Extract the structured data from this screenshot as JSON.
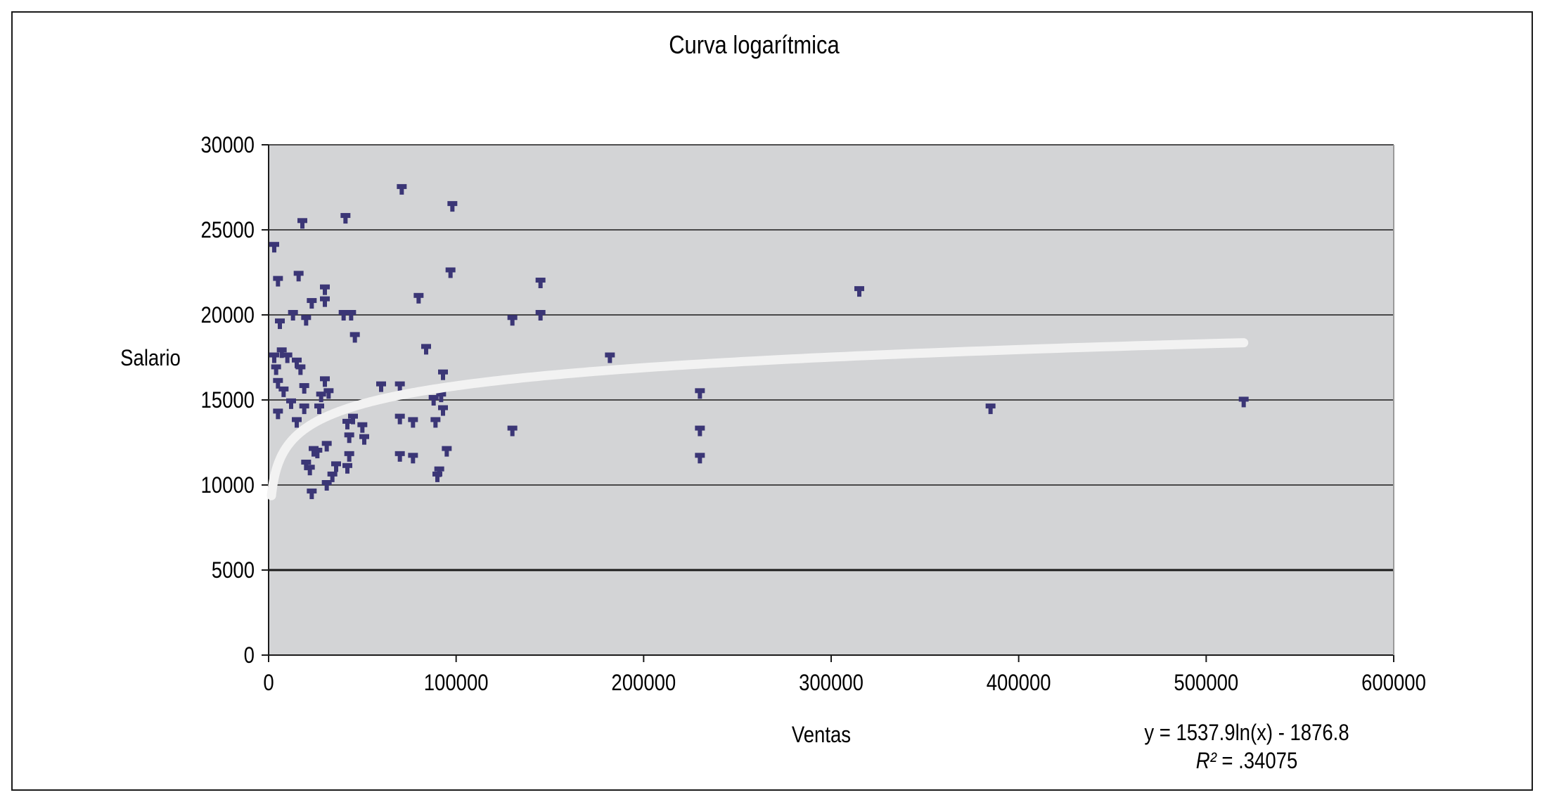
{
  "colors": {
    "plot_bg": "#d3d4d6",
    "marker": "#3b3676",
    "trendline": "#f2f2f2",
    "gridline": "#1a1a1a",
    "frame": "#1a1a1a"
  },
  "chart_data": {
    "type": "scatter",
    "title": "Curva logarítmica",
    "xlabel": "Ventas",
    "ylabel": "Salario",
    "xlim": [
      0,
      600000
    ],
    "ylim": [
      0,
      30000
    ],
    "xticks": [
      0,
      100000,
      200000,
      300000,
      400000,
      500000,
      600000
    ],
    "xtick_labels": [
      "0",
      "100000",
      "200000",
      "300000",
      "400000",
      "500000",
      "600000"
    ],
    "yticks": [
      0,
      5000,
      10000,
      15000,
      20000,
      25000,
      30000
    ],
    "ytick_labels": [
      "0",
      "5000",
      "10000",
      "15000",
      "20000",
      "25000",
      "30000"
    ],
    "grid": "horizontal",
    "trendline": {
      "type": "logarithmic",
      "a": 1537.9,
      "b": -1876.8,
      "equation": "y = 1537.9ln(x) - 1876.8",
      "r2_prefix": "R²",
      "r2_value": " = .34075"
    },
    "points": [
      {
        "x": 3000,
        "y": 24000
      },
      {
        "x": 5000,
        "y": 22000
      },
      {
        "x": 6000,
        "y": 19500
      },
      {
        "x": 3000,
        "y": 17500
      },
      {
        "x": 4000,
        "y": 16800
      },
      {
        "x": 5000,
        "y": 16000
      },
      {
        "x": 5000,
        "y": 14200
      },
      {
        "x": 8000,
        "y": 15500
      },
      {
        "x": 7000,
        "y": 17800
      },
      {
        "x": 10000,
        "y": 17500
      },
      {
        "x": 12000,
        "y": 14800
      },
      {
        "x": 13000,
        "y": 20000
      },
      {
        "x": 15000,
        "y": 17200
      },
      {
        "x": 16000,
        "y": 22300
      },
      {
        "x": 17000,
        "y": 16800
      },
      {
        "x": 18000,
        "y": 25400
      },
      {
        "x": 19000,
        "y": 15700
      },
      {
        "x": 19000,
        "y": 14500
      },
      {
        "x": 15000,
        "y": 13700
      },
      {
        "x": 20000,
        "y": 19700
      },
      {
        "x": 20000,
        "y": 11200
      },
      {
        "x": 22000,
        "y": 10900
      },
      {
        "x": 23000,
        "y": 20700
      },
      {
        "x": 23000,
        "y": 9500
      },
      {
        "x": 24000,
        "y": 12000
      },
      {
        "x": 26000,
        "y": 11900
      },
      {
        "x": 27000,
        "y": 14500
      },
      {
        "x": 28000,
        "y": 15200
      },
      {
        "x": 30000,
        "y": 16100
      },
      {
        "x": 30000,
        "y": 21500
      },
      {
        "x": 30000,
        "y": 20800
      },
      {
        "x": 31000,
        "y": 12300
      },
      {
        "x": 32000,
        "y": 15400
      },
      {
        "x": 31000,
        "y": 10000
      },
      {
        "x": 34000,
        "y": 10500
      },
      {
        "x": 36000,
        "y": 11100
      },
      {
        "x": 40000,
        "y": 20000
      },
      {
        "x": 41000,
        "y": 25700
      },
      {
        "x": 42000,
        "y": 13600
      },
      {
        "x": 43000,
        "y": 12800
      },
      {
        "x": 43000,
        "y": 11700
      },
      {
        "x": 42000,
        "y": 11000
      },
      {
        "x": 44000,
        "y": 20000
      },
      {
        "x": 45000,
        "y": 13900
      },
      {
        "x": 46000,
        "y": 18700
      },
      {
        "x": 50000,
        "y": 13400
      },
      {
        "x": 51000,
        "y": 12700
      },
      {
        "x": 60000,
        "y": 15800
      },
      {
        "x": 70000,
        "y": 15800
      },
      {
        "x": 70000,
        "y": 13900
      },
      {
        "x": 70000,
        "y": 11700
      },
      {
        "x": 71000,
        "y": 27400
      },
      {
        "x": 77000,
        "y": 13700
      },
      {
        "x": 77000,
        "y": 11600
      },
      {
        "x": 80000,
        "y": 21000
      },
      {
        "x": 84000,
        "y": 18000
      },
      {
        "x": 88000,
        "y": 15000
      },
      {
        "x": 89000,
        "y": 13700
      },
      {
        "x": 90000,
        "y": 10500
      },
      {
        "x": 91000,
        "y": 10800
      },
      {
        "x": 92000,
        "y": 15200
      },
      {
        "x": 93000,
        "y": 16500
      },
      {
        "x": 93000,
        "y": 14400
      },
      {
        "x": 95000,
        "y": 12000
      },
      {
        "x": 97000,
        "y": 22500
      },
      {
        "x": 98000,
        "y": 26400
      },
      {
        "x": 130000,
        "y": 19700
      },
      {
        "x": 130000,
        "y": 13200
      },
      {
        "x": 145000,
        "y": 21900
      },
      {
        "x": 145000,
        "y": 20000
      },
      {
        "x": 182000,
        "y": 17500
      },
      {
        "x": 230000,
        "y": 15400
      },
      {
        "x": 230000,
        "y": 13200
      },
      {
        "x": 230000,
        "y": 11600
      },
      {
        "x": 315000,
        "y": 21400
      },
      {
        "x": 385000,
        "y": 14500
      },
      {
        "x": 520000,
        "y": 14900
      }
    ]
  }
}
